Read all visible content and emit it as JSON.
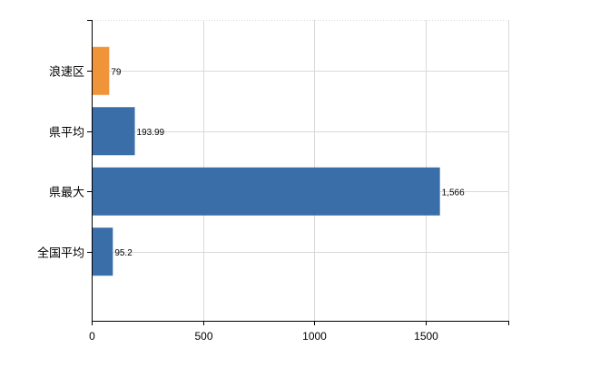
{
  "chart_data": {
    "type": "bar",
    "orientation": "horizontal",
    "categories": [
      "浪速区",
      "県平均",
      "県最大",
      "全国平均"
    ],
    "values": [
      79,
      193.99,
      1566,
      95.2
    ],
    "value_labels": [
      "79",
      "193.99",
      "1,566",
      "95.2"
    ],
    "bar_colors": [
      "#F0943A",
      "#3A6EA8",
      "#3A6EA8",
      "#3A6EA8"
    ],
    "xlim": [
      0,
      1800
    ],
    "x_ticks": [
      0,
      500,
      1000,
      1500
    ],
    "x_tick_labels": [
      "0",
      "500",
      "1000",
      "1500"
    ],
    "grid": true,
    "legend": "none"
  }
}
